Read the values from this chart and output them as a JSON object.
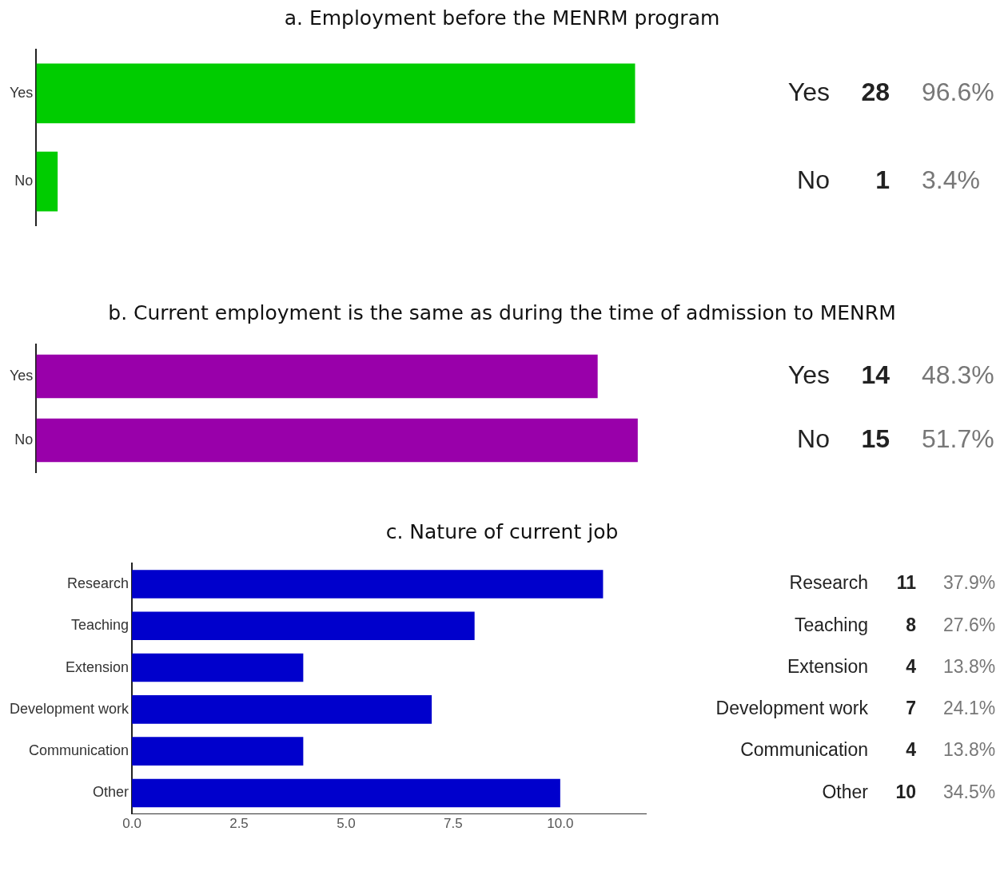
{
  "chart_data": [
    {
      "type": "bar",
      "orientation": "horizontal",
      "title": "a. Employment before the MENRM program",
      "categories": [
        "Yes",
        "No"
      ],
      "values": [
        28,
        1
      ],
      "annotations": [
        "96.6%",
        "3.4%"
      ],
      "data_labels": true,
      "color": "#00cc00",
      "tick_labels": "y"
    },
    {
      "type": "bar",
      "orientation": "horizontal",
      "title": "b. Current employment is the same as during the time of admission to MENRM",
      "categories": [
        "Yes",
        "No"
      ],
      "values": [
        14,
        15
      ],
      "annotations": [
        "48.3%",
        "51.7%"
      ],
      "data_labels": true,
      "color": "#9900aa",
      "tick_labels": "y"
    },
    {
      "type": "bar",
      "orientation": "horizontal",
      "title": "c. Nature of current job",
      "categories": [
        "Research",
        "Teaching",
        "Extension",
        "Development work",
        "Communication",
        "Other"
      ],
      "values": [
        11,
        8,
        4,
        7,
        4,
        10
      ],
      "annotations": [
        "37.9%",
        "27.6%",
        "13.8%",
        "24.1%",
        "13.8%",
        "34.5%"
      ],
      "data_labels": true,
      "color": "#0000cc",
      "xlim": [
        0,
        12
      ],
      "xticks": [
        {
          "value": 0,
          "label": "0.0"
        },
        {
          "value": 2.5,
          "label": "2.5"
        },
        {
          "value": 5,
          "label": "5.0"
        },
        {
          "value": 7.5,
          "label": "7.5"
        },
        {
          "value": 10,
          "label": "10.0"
        }
      ]
    }
  ]
}
